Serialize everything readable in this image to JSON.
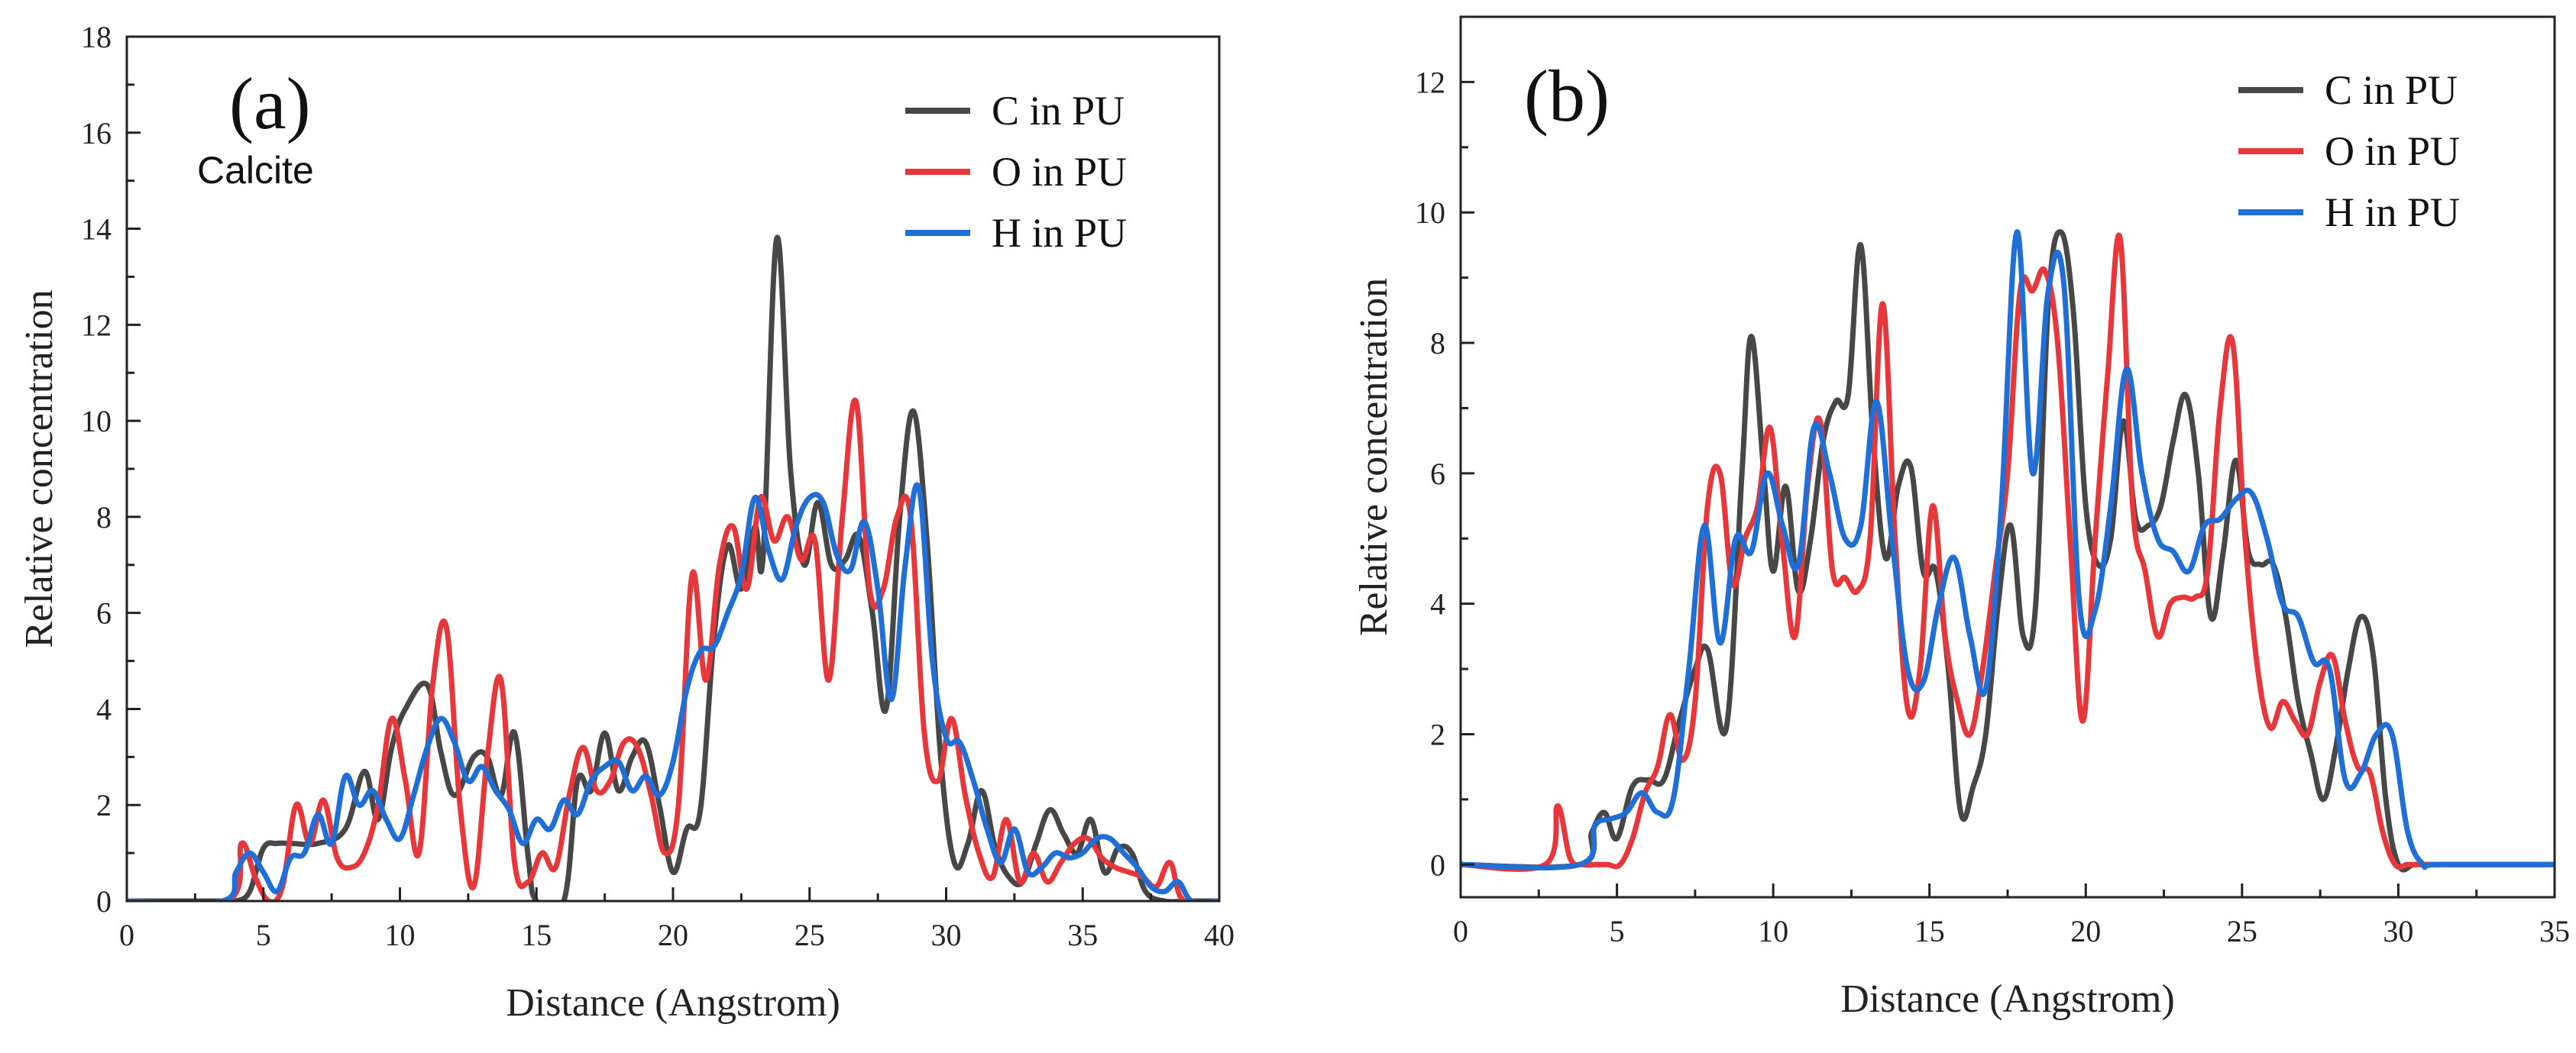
{
  "colors": {
    "C": "#474747",
    "O": "#e8373a",
    "H": "#1f6fd6"
  },
  "chart_data": [
    {
      "type": "line",
      "panel_label": "(a)",
      "sublabel": "Calcite",
      "xlabel": "Distance (Angstrom)",
      "ylabel": "Relative concentration",
      "xlim": [
        0,
        40
      ],
      "ylim": [
        0,
        18
      ],
      "xticks": [
        0,
        5,
        10,
        15,
        20,
        25,
        30,
        35,
        40
      ],
      "yticks": [
        0,
        2,
        4,
        6,
        8,
        10,
        12,
        14,
        16,
        18
      ],
      "grid": false,
      "legend": "top-right",
      "series": [
        {
          "name": "C in PU",
          "key": "C",
          "x": [
            0,
            3.5,
            4,
            4.5,
            5,
            5.5,
            6,
            7,
            8,
            8.7,
            9.2,
            9.7,
            10.2,
            11,
            11.5,
            12,
            12.7,
            13.2,
            13.7,
            14.2,
            14.7,
            15,
            16,
            16.5,
            17,
            17.5,
            18,
            18.5,
            19,
            19.5,
            20,
            20.5,
            21,
            21.5,
            22,
            22.5,
            23,
            23.3,
            23.8,
            24.3,
            24.8,
            25.3,
            25.8,
            26.3,
            26.8,
            27.3,
            27.8,
            28.3,
            28.8,
            29.3,
            29.8,
            30.3,
            30.8,
            31.3,
            31.8,
            32.3,
            32.8,
            33.3,
            33.8,
            34.3,
            34.8,
            35.3,
            35.8,
            36.3,
            36.8,
            37.3,
            38,
            39,
            40
          ],
          "y": [
            0,
            0,
            0,
            0.2,
            1.1,
            1.2,
            1.2,
            1.2,
            1.5,
            2.7,
            1.7,
            3.2,
            4.0,
            4.5,
            3.1,
            2.2,
            3.0,
            3.0,
            2.2,
            3.5,
            0.9,
            0,
            0,
            2.5,
            2.3,
            3.5,
            2.3,
            3.0,
            3.3,
            2.0,
            0.6,
            1.5,
            1.9,
            5.5,
            7.4,
            6.5,
            7.8,
            7.2,
            13.8,
            9.0,
            7.0,
            8.3,
            7.0,
            7.1,
            7.6,
            6.0,
            4.0,
            8.0,
            10.2,
            7.5,
            3.0,
            0.8,
            1.2,
            2.3,
            1.1,
            0.5,
            0.4,
            1.2,
            1.9,
            1.4,
            1.0,
            1.7,
            0.6,
            1.1,
            1.0,
            0.2,
            0,
            0,
            0
          ]
        },
        {
          "name": "O in PU",
          "key": "O",
          "x": [
            0,
            3.7,
            4.2,
            4.7,
            5.2,
            5.7,
            6.2,
            6.7,
            7.2,
            7.7,
            8.2,
            8.7,
            9.2,
            9.7,
            10.2,
            10.7,
            11.2,
            11.7,
            12.2,
            12.7,
            13.2,
            13.7,
            14.2,
            14.7,
            15.2,
            15.7,
            16.2,
            16.7,
            17.2,
            17.7,
            18.2,
            18.7,
            19.2,
            19.7,
            20.2,
            20.7,
            21.2,
            21.7,
            22.2,
            22.7,
            23.2,
            23.7,
            24.2,
            24.7,
            25.2,
            25.7,
            26.2,
            26.7,
            27.2,
            27.7,
            28.2,
            28.7,
            29.2,
            29.7,
            30.2,
            30.7,
            31.2,
            31.7,
            32.2,
            32.7,
            33.2,
            33.7,
            34.2,
            34.7,
            35.2,
            35.7,
            36.2,
            36.7,
            37.2,
            37.7,
            38.2,
            38.7,
            40
          ],
          "y": [
            0,
            0,
            1.2,
            0.5,
            0,
            0.3,
            2.0,
            1.2,
            2.1,
            0.9,
            0.7,
            1.0,
            2.0,
            3.8,
            2.5,
            1.0,
            4.5,
            5.7,
            2.0,
            0.3,
            3.0,
            4.6,
            0.8,
            0.4,
            1.0,
            0.7,
            2.2,
            3.2,
            2.3,
            2.5,
            3.3,
            3.2,
            2.2,
            1.0,
            2.0,
            6.8,
            4.6,
            7.0,
            7.8,
            6.5,
            8.4,
            7.5,
            8.0,
            7.1,
            7.5,
            4.6,
            8.0,
            10.4,
            6.5,
            6.5,
            8.0,
            8.0,
            3.5,
            2.5,
            3.8,
            2.2,
            1.0,
            0.5,
            1.7,
            0.4,
            1.0,
            0.4,
            0.8,
            1.2,
            1.3,
            0.9,
            0.7,
            0.6,
            0.5,
            0.3,
            0.8,
            0,
            0
          ]
        },
        {
          "name": "H in PU",
          "key": "H",
          "x": [
            0,
            3.5,
            4,
            4.5,
            5,
            5.5,
            6,
            6.5,
            7,
            7.5,
            8,
            8.5,
            9,
            9.5,
            10,
            10.5,
            11,
            11.5,
            12,
            12.5,
            13,
            13.5,
            14,
            14.5,
            15,
            15.5,
            16,
            16.5,
            17,
            17.5,
            18,
            18.5,
            19,
            19.5,
            20,
            20.5,
            21,
            21.5,
            22,
            22.5,
            23,
            23.5,
            24,
            24.5,
            25,
            25.5,
            26,
            26.5,
            27,
            27.5,
            28,
            28.5,
            29,
            29.5,
            30,
            30.5,
            31,
            31.5,
            32,
            32.5,
            33,
            33.5,
            34,
            34.5,
            35,
            35.5,
            36,
            36.5,
            37,
            37.5,
            38,
            38.5,
            39,
            40
          ],
          "y": [
            0,
            0,
            0.6,
            1.0,
            0.6,
            0.2,
            0.9,
            1.0,
            1.8,
            1.2,
            2.6,
            2.0,
            2.3,
            1.7,
            1.3,
            2.2,
            3.2,
            3.8,
            3.3,
            2.5,
            2.8,
            2.3,
            1.9,
            1.2,
            1.7,
            1.5,
            2.1,
            1.8,
            2.5,
            2.8,
            2.9,
            2.3,
            2.6,
            2.2,
            2.9,
            4.4,
            5.2,
            5.3,
            6.0,
            6.8,
            8.4,
            7.3,
            6.7,
            7.8,
            8.4,
            8.3,
            7.2,
            6.9,
            7.9,
            6.5,
            4.2,
            7.0,
            8.6,
            5.0,
            3.4,
            3.3,
            2.5,
            1.5,
            0.8,
            1.5,
            0.6,
            0.7,
            1.0,
            0.9,
            1.0,
            1.3,
            1.3,
            1.0,
            0.7,
            0.3,
            0.2,
            0.4,
            0,
            0
          ]
        }
      ]
    },
    {
      "type": "line",
      "panel_label": "(b)",
      "xlabel": "Distance (Angstrom)",
      "ylabel": "Relative concentration",
      "xlim": [
        0,
        35
      ],
      "ylim": [
        -0.5,
        13
      ],
      "xticks": [
        0,
        5,
        10,
        15,
        20,
        25,
        30,
        35
      ],
      "yticks": [
        0,
        2,
        4,
        6,
        8,
        10,
        12
      ],
      "grid": false,
      "legend": "top-right",
      "series": [
        {
          "name": "C in PU",
          "key": "C",
          "x": [
            0,
            3.8,
            4.2,
            4.6,
            5,
            5.5,
            6,
            6.5,
            7,
            7.5,
            7.9,
            8.5,
            9,
            9.3,
            9.7,
            10,
            10.4,
            10.8,
            11.2,
            11.6,
            12,
            12.4,
            12.8,
            13.2,
            13.6,
            14,
            14.4,
            14.8,
            15.2,
            15.6,
            16,
            16.4,
            16.8,
            17.2,
            17.6,
            18,
            18.4,
            18.8,
            19.2,
            19.6,
            20,
            20.4,
            20.8,
            21.2,
            21.6,
            22,
            22.4,
            22.8,
            23.2,
            23.6,
            24,
            24.4,
            24.8,
            25.2,
            25.6,
            26,
            26.4,
            26.8,
            27.2,
            27.6,
            28,
            28.4,
            28.8,
            29.2,
            29.6,
            30,
            30.5,
            31,
            35
          ],
          "y": [
            0,
            0,
            0.5,
            0.8,
            0.4,
            1.2,
            1.3,
            1.3,
            2.2,
            3.0,
            3.3,
            2.1,
            6.0,
            8.1,
            6.0,
            4.5,
            5.8,
            4.2,
            5.0,
            6.5,
            7.1,
            7.2,
            9.5,
            6.5,
            4.7,
            5.8,
            6.1,
            4.5,
            4.5,
            3.0,
            0.8,
            1.2,
            2.0,
            4.0,
            5.2,
            3.5,
            4.0,
            8.6,
            9.7,
            8.5,
            5.5,
            4.6,
            5.0,
            6.8,
            5.3,
            5.2,
            5.5,
            6.5,
            7.2,
            6.0,
            3.8,
            4.8,
            6.2,
            4.8,
            4.6,
            4.6,
            3.8,
            2.5,
            1.7,
            1.0,
            1.8,
            3.0,
            3.8,
            3.2,
            1.0,
            0,
            0,
            0,
            0
          ]
        },
        {
          "name": "O in PU",
          "key": "O",
          "x": [
            0,
            2.7,
            3.1,
            3.5,
            3.9,
            4.3,
            4.7,
            5.1,
            5.5,
            5.9,
            6.3,
            6.7,
            7.1,
            7.5,
            7.9,
            8.3,
            8.7,
            9.1,
            9.5,
            9.9,
            10.3,
            10.7,
            11.1,
            11.5,
            11.9,
            12.3,
            12.7,
            13.1,
            13.5,
            13.9,
            14.3,
            14.7,
            15.1,
            15.5,
            15.9,
            16.3,
            16.7,
            17.1,
            17.5,
            17.9,
            18.3,
            18.7,
            19.1,
            19.5,
            19.9,
            20.3,
            20.7,
            21.1,
            21.5,
            21.9,
            22.3,
            22.7,
            23.1,
            23.5,
            23.9,
            24.3,
            24.7,
            25.1,
            25.5,
            25.9,
            26.3,
            26.7,
            27.1,
            27.5,
            27.9,
            28.3,
            28.7,
            29.1,
            29.5,
            29.9,
            30.3,
            30.7,
            35
          ],
          "y": [
            0,
            0,
            0.9,
            0.1,
            0,
            0,
            0,
            0,
            0.4,
            1.1,
            1.5,
            2.3,
            1.6,
            2.5,
            5.5,
            6.0,
            4.3,
            5.0,
            5.5,
            6.7,
            4.9,
            3.5,
            5.8,
            6.8,
            4.5,
            4.4,
            4.2,
            5.0,
            8.6,
            5.0,
            2.4,
            3.0,
            5.5,
            3.5,
            2.5,
            2.0,
            3.0,
            4.5,
            6.0,
            8.8,
            8.8,
            9.1,
            8.0,
            5.0,
            2.2,
            5.0,
            7.5,
            9.6,
            5.5,
            4.5,
            3.5,
            4.0,
            4.1,
            4.1,
            4.5,
            7.0,
            8.0,
            5.0,
            3.0,
            2.1,
            2.5,
            2.2,
            2.0,
            2.8,
            3.2,
            2.2,
            1.5,
            1.4,
            0.5,
            0,
            0,
            0,
            0
          ]
        },
        {
          "name": "H in PU",
          "key": "H",
          "x": [
            0,
            3.8,
            4.3,
            4.8,
            5.3,
            5.8,
            6.3,
            6.8,
            7.3,
            7.8,
            8.3,
            8.8,
            9.3,
            9.8,
            10.3,
            10.8,
            11.3,
            11.8,
            12.3,
            12.8,
            13.3,
            13.8,
            14.3,
            14.8,
            15.3,
            15.8,
            16.3,
            16.8,
            17.3,
            17.8,
            18.3,
            18.8,
            19.3,
            19.8,
            20.3,
            20.8,
            21.3,
            21.8,
            22.3,
            22.8,
            23.3,
            23.8,
            24.3,
            24.8,
            25.3,
            25.8,
            26.3,
            26.8,
            27.3,
            27.8,
            28.3,
            28.8,
            29.3,
            29.8,
            30.3,
            30.8,
            31.3,
            35
          ],
          "y": [
            0,
            0,
            0.6,
            0.7,
            0.8,
            1.1,
            0.8,
            1.0,
            3.0,
            5.2,
            3.4,
            5.0,
            4.8,
            6.0,
            5.2,
            4.6,
            6.7,
            6.0,
            5.0,
            5.2,
            7.1,
            5.0,
            3.0,
            2.8,
            4.0,
            4.7,
            3.5,
            2.7,
            5.5,
            9.7,
            6.0,
            8.8,
            8.9,
            4.0,
            3.9,
            5.5,
            7.6,
            6.0,
            5.0,
            4.8,
            4.5,
            5.2,
            5.3,
            5.6,
            5.7,
            5.0,
            4.0,
            3.8,
            3.1,
            3.0,
            1.3,
            1.4,
            2.0,
            2.0,
            0.5,
            0,
            0,
            0
          ]
        }
      ]
    }
  ]
}
